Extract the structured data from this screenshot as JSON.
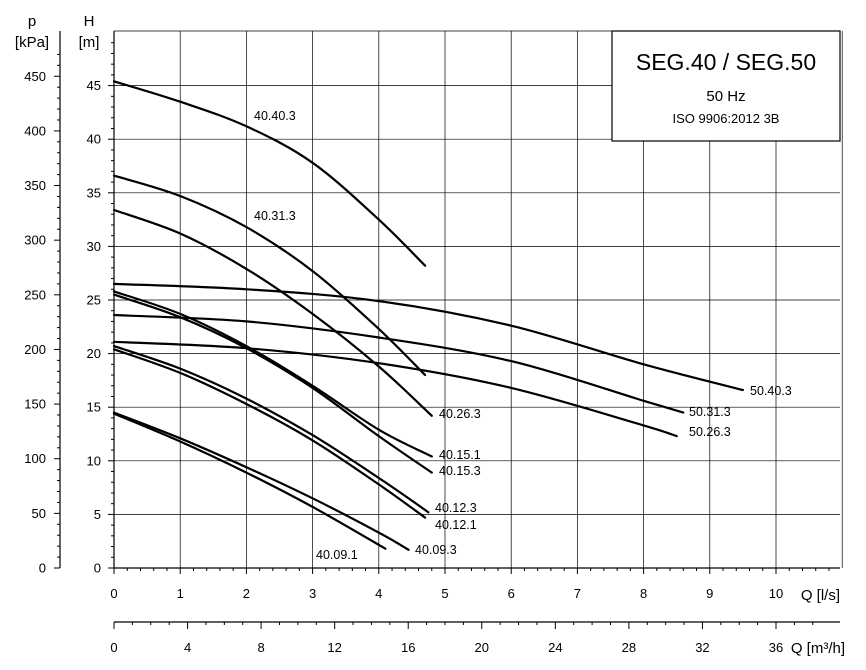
{
  "chart_data": {
    "type": "line",
    "title": "SEG.40 / SEG.50",
    "subtitle": "50 Hz",
    "standard": "ISO 9906:2012 3B",
    "xlabel": "Q [l/s]",
    "ylabel": "H",
    "ylabel_unit": "[m]",
    "ylabel_secondary": "p",
    "ylabel_secondary_unit": "[kPa]",
    "xlabel_secondary": "Q [m³/h]",
    "xlim": [
      0,
      11
    ],
    "ylim": [
      0,
      50
    ],
    "grid": true,
    "x_ticks": [
      "0",
      "1",
      "2",
      "3",
      "4",
      "5",
      "6",
      "7",
      "8",
      "9",
      "10"
    ],
    "y_ticks": [
      "0",
      "5",
      "10",
      "15",
      "20",
      "25",
      "30",
      "35",
      "40",
      "45"
    ],
    "p_ticks": [
      "0",
      "50",
      "100",
      "150",
      "200",
      "250",
      "300",
      "350",
      "400",
      "450"
    ],
    "q3_ticks": [
      "0",
      "4",
      "8",
      "12",
      "16",
      "20",
      "24",
      "28",
      "32",
      "36"
    ],
    "series": [
      {
        "name": "40.40.3",
        "x": [
          0,
          1,
          2,
          3,
          4,
          4.7
        ],
        "y": [
          45.4,
          43.5,
          41.2,
          37.8,
          32.5,
          28.2
        ]
      },
      {
        "name": "40.31.3",
        "x": [
          0,
          1,
          2,
          3,
          4,
          4.7
        ],
        "y": [
          36.6,
          34.7,
          31.8,
          27.7,
          22.3,
          18.0
        ]
      },
      {
        "name": "40.26.3",
        "x": [
          0,
          1,
          2,
          3,
          4,
          4.8
        ],
        "y": [
          33.4,
          31.2,
          27.9,
          23.7,
          18.8,
          14.2
        ]
      },
      {
        "name": "40.15.1",
        "x": [
          0,
          1,
          2,
          3,
          4,
          4.8
        ],
        "y": [
          25.8,
          23.7,
          20.7,
          17.0,
          12.9,
          10.4
        ]
      },
      {
        "name": "40.15.3",
        "x": [
          0,
          1,
          2,
          3,
          4,
          4.8
        ],
        "y": [
          25.5,
          23.4,
          20.5,
          16.8,
          12.3,
          8.9
        ]
      },
      {
        "name": "40.12.3",
        "x": [
          0,
          1,
          2,
          3,
          4,
          4.75
        ],
        "y": [
          20.7,
          18.6,
          15.8,
          12.4,
          8.4,
          5.2
        ]
      },
      {
        "name": "40.12.1",
        "x": [
          0,
          1,
          2,
          3,
          4,
          4.7
        ],
        "y": [
          20.4,
          18.2,
          15.3,
          11.9,
          7.8,
          4.7
        ]
      },
      {
        "name": "40.09.3",
        "x": [
          0,
          1,
          2,
          3,
          4,
          4.45
        ],
        "y": [
          14.5,
          12.1,
          9.4,
          6.5,
          3.3,
          1.7
        ]
      },
      {
        "name": "40.09.1",
        "x": [
          0,
          1,
          2,
          3,
          4.1
        ],
        "y": [
          14.4,
          11.8,
          8.9,
          5.7,
          1.8
        ]
      },
      {
        "name": "50.40.3",
        "x": [
          0,
          2,
          4,
          6,
          8,
          9.5
        ],
        "y": [
          26.5,
          26.0,
          24.9,
          22.6,
          19.0,
          16.6
        ]
      },
      {
        "name": "50.31.3",
        "x": [
          0,
          2,
          4,
          6,
          8,
          8.6
        ],
        "y": [
          23.6,
          23.0,
          21.5,
          19.3,
          15.6,
          14.5
        ]
      },
      {
        "name": "50.26.3",
        "x": [
          0,
          2,
          4,
          6,
          8,
          8.5
        ],
        "y": [
          21.1,
          20.5,
          19.1,
          16.8,
          13.3,
          12.3
        ]
      }
    ]
  }
}
